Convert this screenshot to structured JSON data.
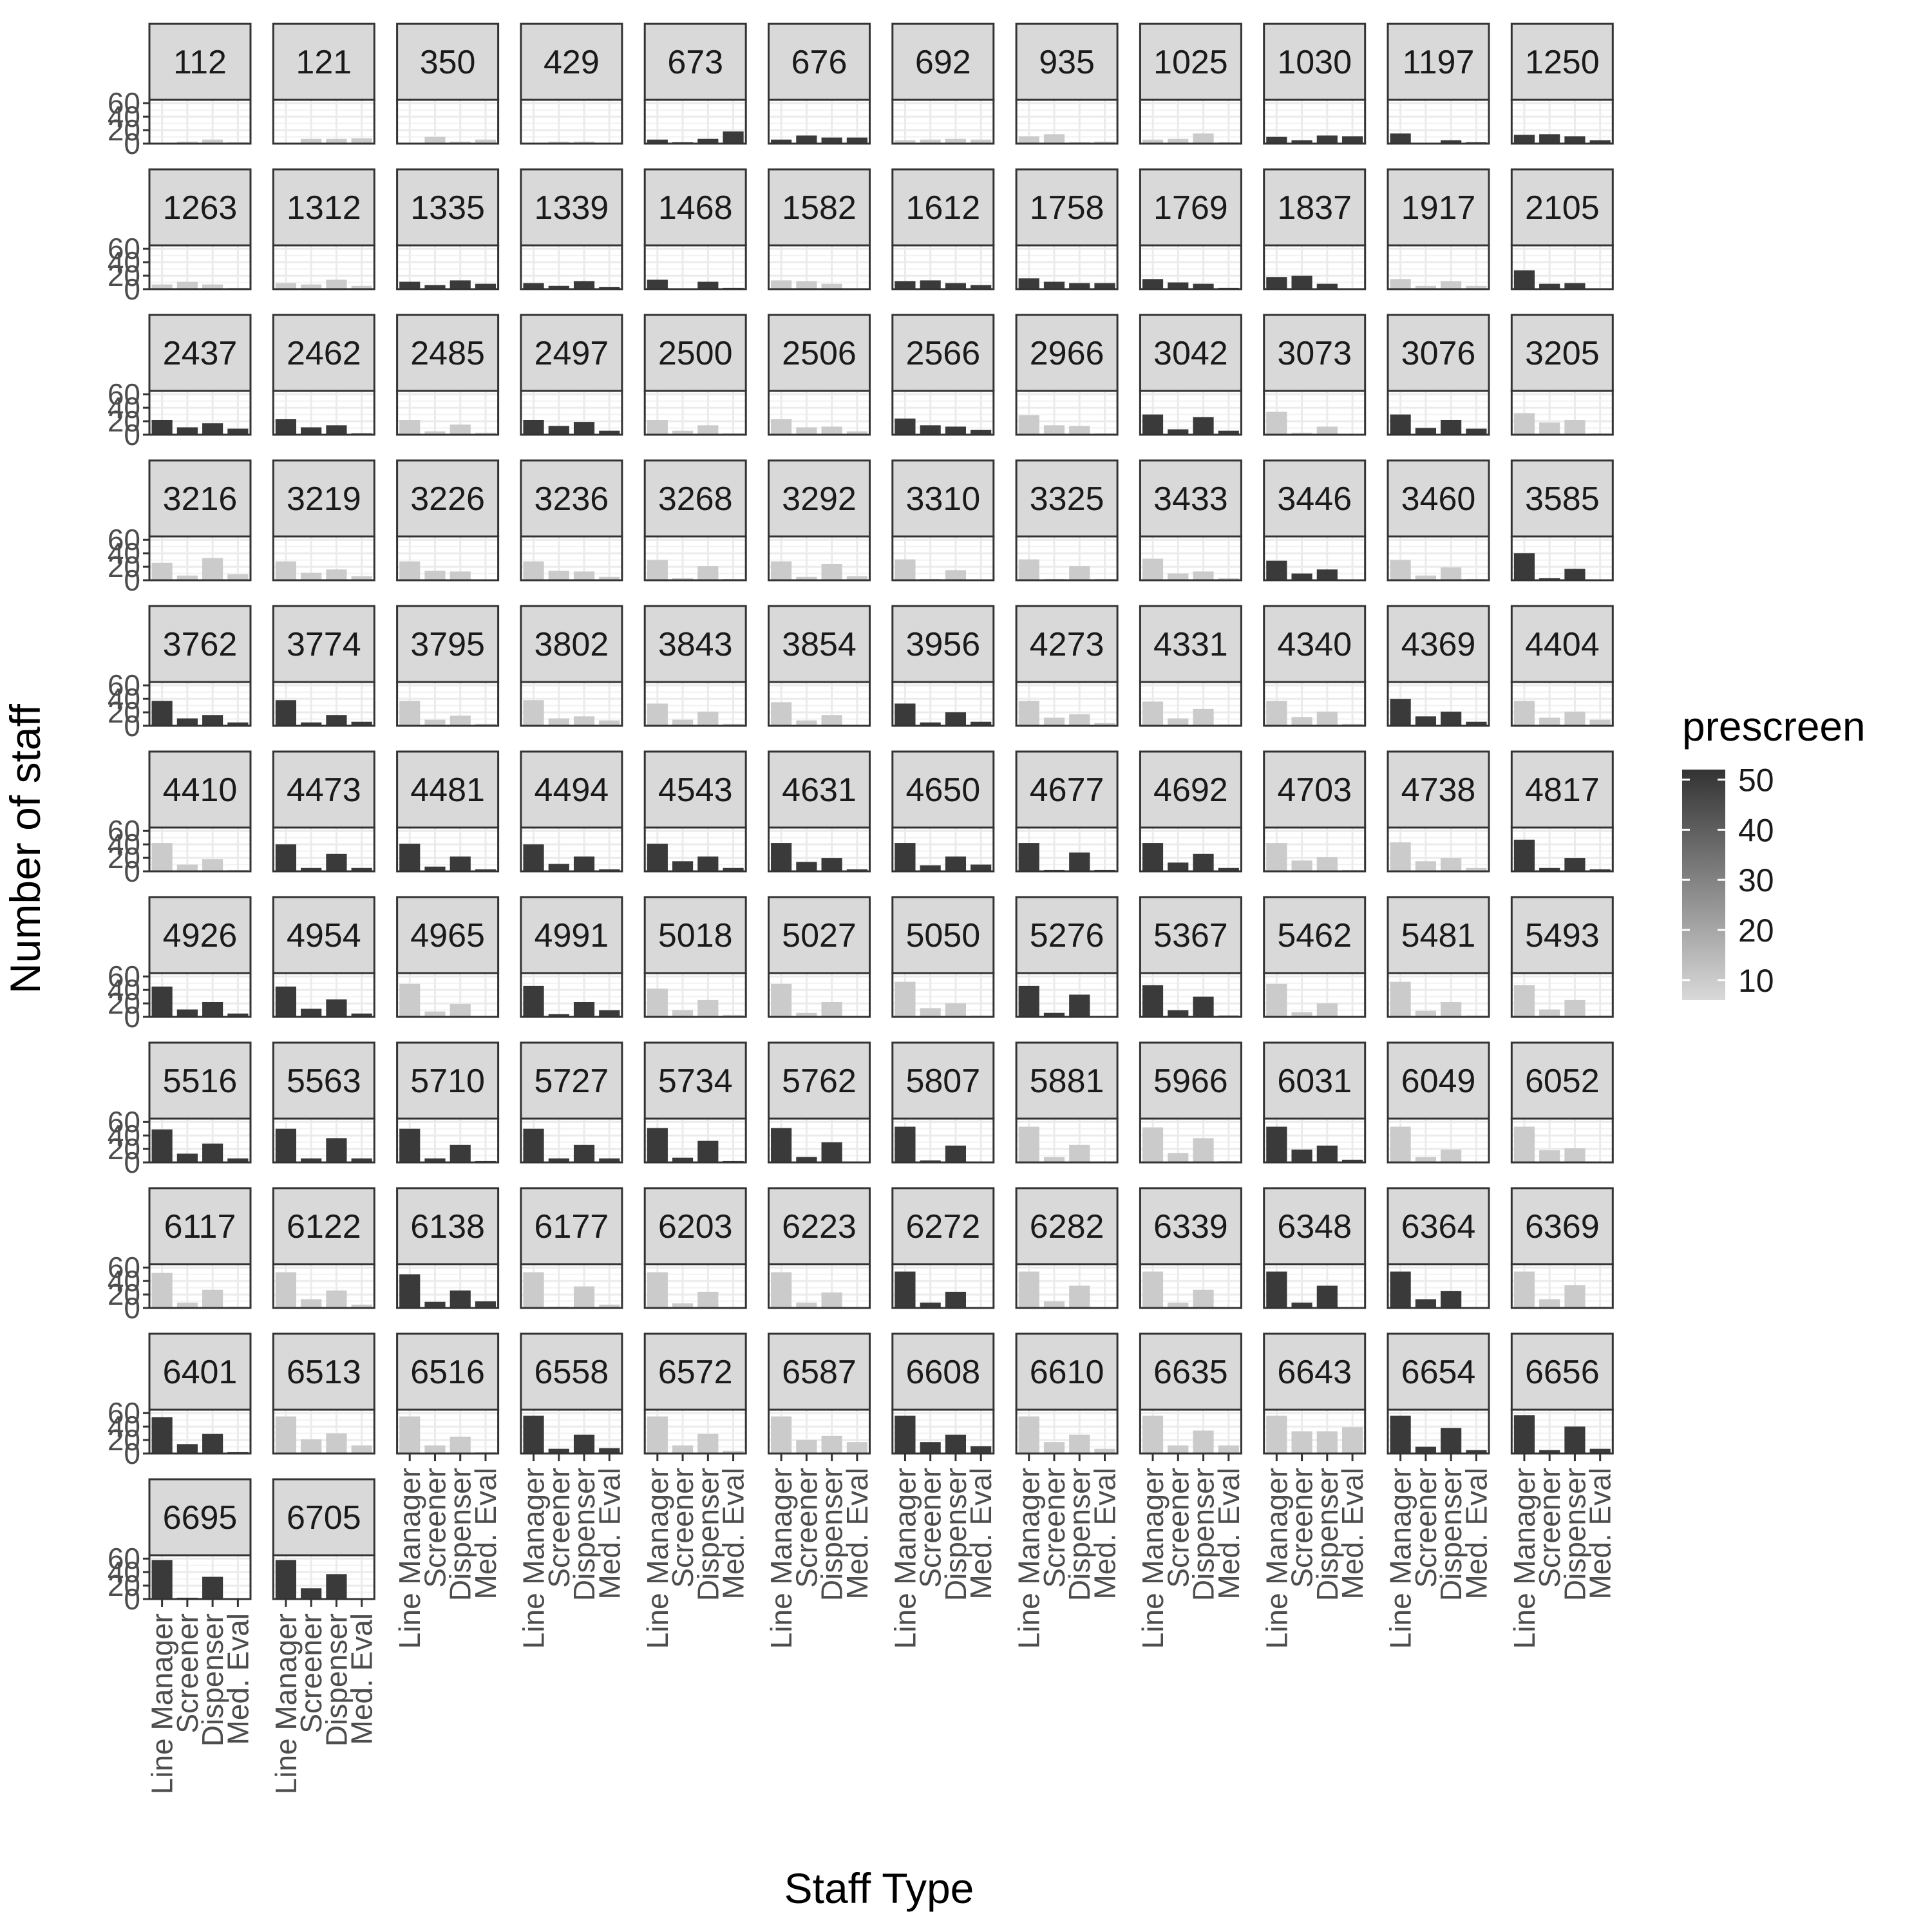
{
  "chart_data": {
    "type": "bar",
    "xlabel": "Staff Type",
    "ylabel": "Number of staff",
    "categories": [
      "Line Manager",
      "Screener",
      "Dispenser",
      "Med. Eval"
    ],
    "y_ticks": [
      0,
      20,
      40,
      60
    ],
    "ylim": [
      0,
      65
    ],
    "facet_columns": 12,
    "legend": {
      "title": "prescreen",
      "position": "right",
      "ticks": [
        10,
        20,
        30,
        40,
        50
      ],
      "range": [
        6,
        52
      ],
      "low_color": "#d9d9d9",
      "high_color": "#333333"
    },
    "panels": [
      {
        "id": "112",
        "prescreen": 10,
        "values": [
          1,
          3,
          6,
          2
        ]
      },
      {
        "id": "121",
        "prescreen": 10,
        "values": [
          1,
          7,
          7,
          8
        ]
      },
      {
        "id": "350",
        "prescreen": 10,
        "values": [
          1,
          10,
          3,
          6
        ]
      },
      {
        "id": "429",
        "prescreen": 10,
        "values": [
          0,
          3,
          3,
          1
        ]
      },
      {
        "id": "673",
        "prescreen": 50,
        "values": [
          6,
          2,
          7,
          18
        ]
      },
      {
        "id": "676",
        "prescreen": 50,
        "values": [
          6,
          12,
          9,
          9
        ]
      },
      {
        "id": "692",
        "prescreen": 10,
        "values": [
          5,
          6,
          7,
          6
        ]
      },
      {
        "id": "935",
        "prescreen": 10,
        "values": [
          11,
          14,
          2,
          3
        ]
      },
      {
        "id": "1025",
        "prescreen": 10,
        "values": [
          6,
          7,
          15,
          2
        ]
      },
      {
        "id": "1030",
        "prescreen": 50,
        "values": [
          10,
          5,
          12,
          11
        ]
      },
      {
        "id": "1197",
        "prescreen": 50,
        "values": [
          15,
          1,
          5,
          2
        ]
      },
      {
        "id": "1250",
        "prescreen": 50,
        "values": [
          13,
          14,
          11,
          5
        ]
      },
      {
        "id": "1263",
        "prescreen": 10,
        "values": [
          7,
          11,
          7,
          2
        ]
      },
      {
        "id": "1312",
        "prescreen": 10,
        "values": [
          9,
          7,
          14,
          5
        ]
      },
      {
        "id": "1335",
        "prescreen": 50,
        "values": [
          11,
          6,
          13,
          8
        ]
      },
      {
        "id": "1339",
        "prescreen": 50,
        "values": [
          9,
          5,
          12,
          3
        ]
      },
      {
        "id": "1468",
        "prescreen": 50,
        "values": [
          14,
          1,
          11,
          2
        ]
      },
      {
        "id": "1582",
        "prescreen": 10,
        "values": [
          13,
          12,
          8,
          1
        ]
      },
      {
        "id": "1612",
        "prescreen": 50,
        "values": [
          12,
          13,
          9,
          6
        ]
      },
      {
        "id": "1758",
        "prescreen": 50,
        "values": [
          16,
          11,
          9,
          9
        ]
      },
      {
        "id": "1769",
        "prescreen": 50,
        "values": [
          15,
          10,
          8,
          2
        ]
      },
      {
        "id": "1837",
        "prescreen": 50,
        "values": [
          18,
          20,
          8,
          1
        ]
      },
      {
        "id": "1917",
        "prescreen": 10,
        "values": [
          15,
          5,
          12,
          5
        ]
      },
      {
        "id": "2105",
        "prescreen": 50,
        "values": [
          28,
          8,
          9,
          1
        ]
      },
      {
        "id": "2437",
        "prescreen": 50,
        "values": [
          22,
          11,
          17,
          9
        ]
      },
      {
        "id": "2462",
        "prescreen": 50,
        "values": [
          23,
          11,
          14,
          2
        ]
      },
      {
        "id": "2485",
        "prescreen": 10,
        "values": [
          22,
          5,
          15,
          3
        ]
      },
      {
        "id": "2497",
        "prescreen": 50,
        "values": [
          22,
          13,
          19,
          6
        ]
      },
      {
        "id": "2500",
        "prescreen": 10,
        "values": [
          22,
          6,
          14,
          2
        ]
      },
      {
        "id": "2506",
        "prescreen": 10,
        "values": [
          23,
          11,
          12,
          5
        ]
      },
      {
        "id": "2566",
        "prescreen": 50,
        "values": [
          24,
          14,
          12,
          7
        ]
      },
      {
        "id": "2966",
        "prescreen": 10,
        "values": [
          29,
          14,
          13,
          2
        ]
      },
      {
        "id": "3042",
        "prescreen": 50,
        "values": [
          30,
          8,
          26,
          6
        ]
      },
      {
        "id": "3073",
        "prescreen": 10,
        "values": [
          34,
          3,
          12,
          1
        ]
      },
      {
        "id": "3076",
        "prescreen": 50,
        "values": [
          30,
          10,
          22,
          9
        ]
      },
      {
        "id": "3205",
        "prescreen": 10,
        "values": [
          32,
          18,
          22,
          2
        ]
      },
      {
        "id": "3216",
        "prescreen": 10,
        "values": [
          26,
          7,
          33,
          9
        ]
      },
      {
        "id": "3219",
        "prescreen": 10,
        "values": [
          28,
          11,
          16,
          6
        ]
      },
      {
        "id": "3226",
        "prescreen": 10,
        "values": [
          28,
          14,
          13,
          1
        ]
      },
      {
        "id": "3236",
        "prescreen": 10,
        "values": [
          28,
          14,
          13,
          5
        ]
      },
      {
        "id": "3268",
        "prescreen": 10,
        "values": [
          30,
          3,
          21,
          2
        ]
      },
      {
        "id": "3292",
        "prescreen": 10,
        "values": [
          28,
          5,
          24,
          6
        ]
      },
      {
        "id": "3310",
        "prescreen": 10,
        "values": [
          31,
          2,
          15,
          0
        ]
      },
      {
        "id": "3325",
        "prescreen": 10,
        "values": [
          31,
          2,
          21,
          2
        ]
      },
      {
        "id": "3433",
        "prescreen": 10,
        "values": [
          32,
          10,
          13,
          3
        ]
      },
      {
        "id": "3446",
        "prescreen": 50,
        "values": [
          29,
          10,
          16,
          1
        ]
      },
      {
        "id": "3460",
        "prescreen": 10,
        "values": [
          30,
          7,
          19,
          2
        ]
      },
      {
        "id": "3585",
        "prescreen": 50,
        "values": [
          40,
          3,
          17,
          1
        ]
      },
      {
        "id": "3762",
        "prescreen": 50,
        "values": [
          37,
          11,
          16,
          5
        ]
      },
      {
        "id": "3774",
        "prescreen": 50,
        "values": [
          38,
          5,
          16,
          6
        ]
      },
      {
        "id": "3795",
        "prescreen": 10,
        "values": [
          37,
          9,
          15,
          3
        ]
      },
      {
        "id": "3802",
        "prescreen": 10,
        "values": [
          38,
          11,
          14,
          8
        ]
      },
      {
        "id": "3843",
        "prescreen": 10,
        "values": [
          33,
          9,
          21,
          3
        ]
      },
      {
        "id": "3854",
        "prescreen": 10,
        "values": [
          35,
          8,
          16,
          1
        ]
      },
      {
        "id": "3956",
        "prescreen": 50,
        "values": [
          33,
          5,
          20,
          6
        ]
      },
      {
        "id": "4273",
        "prescreen": 10,
        "values": [
          37,
          12,
          17,
          4
        ]
      },
      {
        "id": "4331",
        "prescreen": 10,
        "values": [
          36,
          11,
          25,
          2
        ]
      },
      {
        "id": "4340",
        "prescreen": 10,
        "values": [
          37,
          13,
          21,
          3
        ]
      },
      {
        "id": "4369",
        "prescreen": 50,
        "values": [
          40,
          14,
          21,
          6
        ]
      },
      {
        "id": "4404",
        "prescreen": 10,
        "values": [
          37,
          12,
          21,
          9
        ]
      },
      {
        "id": "4410",
        "prescreen": 10,
        "values": [
          42,
          10,
          18,
          2
        ]
      },
      {
        "id": "4473",
        "prescreen": 50,
        "values": [
          40,
          5,
          26,
          5
        ]
      },
      {
        "id": "4481",
        "prescreen": 50,
        "values": [
          41,
          7,
          22,
          3
        ]
      },
      {
        "id": "4494",
        "prescreen": 50,
        "values": [
          40,
          11,
          22,
          3
        ]
      },
      {
        "id": "4543",
        "prescreen": 50,
        "values": [
          41,
          15,
          22,
          5
        ]
      },
      {
        "id": "4631",
        "prescreen": 50,
        "values": [
          42,
          14,
          20,
          3
        ]
      },
      {
        "id": "4650",
        "prescreen": 50,
        "values": [
          42,
          9,
          22,
          10
        ]
      },
      {
        "id": "4677",
        "prescreen": 50,
        "values": [
          42,
          2,
          28,
          2
        ]
      },
      {
        "id": "4692",
        "prescreen": 50,
        "values": [
          42,
          13,
          26,
          5
        ]
      },
      {
        "id": "4703",
        "prescreen": 10,
        "values": [
          42,
          16,
          21,
          2
        ]
      },
      {
        "id": "4738",
        "prescreen": 10,
        "values": [
          43,
          15,
          20,
          5
        ]
      },
      {
        "id": "4817",
        "prescreen": 50,
        "values": [
          47,
          5,
          20,
          3
        ]
      },
      {
        "id": "4926",
        "prescreen": 50,
        "values": [
          45,
          11,
          22,
          5
        ]
      },
      {
        "id": "4954",
        "prescreen": 50,
        "values": [
          45,
          12,
          26,
          5
        ]
      },
      {
        "id": "4965",
        "prescreen": 10,
        "values": [
          49,
          8,
          19,
          1
        ]
      },
      {
        "id": "4991",
        "prescreen": 50,
        "values": [
          46,
          4,
          22,
          10
        ]
      },
      {
        "id": "5018",
        "prescreen": 10,
        "values": [
          42,
          10,
          25,
          3
        ]
      },
      {
        "id": "5027",
        "prescreen": 10,
        "values": [
          49,
          6,
          22,
          1
        ]
      },
      {
        "id": "5050",
        "prescreen": 10,
        "values": [
          52,
          13,
          20,
          2
        ]
      },
      {
        "id": "5276",
        "prescreen": 50,
        "values": [
          46,
          6,
          33,
          1
        ]
      },
      {
        "id": "5367",
        "prescreen": 50,
        "values": [
          47,
          10,
          30,
          2
        ]
      },
      {
        "id": "5462",
        "prescreen": 10,
        "values": [
          49,
          7,
          20,
          1
        ]
      },
      {
        "id": "5481",
        "prescreen": 10,
        "values": [
          52,
          9,
          22,
          2
        ]
      },
      {
        "id": "5493",
        "prescreen": 10,
        "values": [
          47,
          11,
          25,
          2
        ]
      },
      {
        "id": "5516",
        "prescreen": 50,
        "values": [
          49,
          13,
          28,
          6
        ]
      },
      {
        "id": "5563",
        "prescreen": 50,
        "values": [
          50,
          6,
          36,
          6
        ]
      },
      {
        "id": "5710",
        "prescreen": 50,
        "values": [
          50,
          6,
          26,
          2
        ]
      },
      {
        "id": "5727",
        "prescreen": 50,
        "values": [
          50,
          6,
          26,
          6
        ]
      },
      {
        "id": "5734",
        "prescreen": 50,
        "values": [
          51,
          7,
          32,
          2
        ]
      },
      {
        "id": "5762",
        "prescreen": 50,
        "values": [
          51,
          8,
          30,
          1
        ]
      },
      {
        "id": "5807",
        "prescreen": 50,
        "values": [
          53,
          3,
          25,
          0
        ]
      },
      {
        "id": "5881",
        "prescreen": 10,
        "values": [
          53,
          8,
          26,
          1
        ]
      },
      {
        "id": "5966",
        "prescreen": 10,
        "values": [
          52,
          14,
          36,
          2
        ]
      },
      {
        "id": "6031",
        "prescreen": 50,
        "values": [
          53,
          19,
          25,
          4
        ]
      },
      {
        "id": "6049",
        "prescreen": 10,
        "values": [
          53,
          8,
          19,
          1
        ]
      },
      {
        "id": "6052",
        "prescreen": 10,
        "values": [
          53,
          18,
          21,
          1
        ]
      },
      {
        "id": "6117",
        "prescreen": 10,
        "values": [
          52,
          8,
          27,
          2
        ]
      },
      {
        "id": "6122",
        "prescreen": 10,
        "values": [
          53,
          13,
          26,
          5
        ]
      },
      {
        "id": "6138",
        "prescreen": 50,
        "values": [
          50,
          9,
          26,
          10
        ]
      },
      {
        "id": "6177",
        "prescreen": 10,
        "values": [
          53,
          2,
          32,
          5
        ]
      },
      {
        "id": "6203",
        "prescreen": 10,
        "values": [
          53,
          7,
          24,
          1
        ]
      },
      {
        "id": "6223",
        "prescreen": 10,
        "values": [
          53,
          8,
          23,
          0
        ]
      },
      {
        "id": "6272",
        "prescreen": 50,
        "values": [
          54,
          8,
          24,
          1
        ]
      },
      {
        "id": "6282",
        "prescreen": 10,
        "values": [
          54,
          10,
          33,
          0
        ]
      },
      {
        "id": "6339",
        "prescreen": 10,
        "values": [
          54,
          8,
          27,
          1
        ]
      },
      {
        "id": "6348",
        "prescreen": 50,
        "values": [
          54,
          8,
          33,
          1
        ]
      },
      {
        "id": "6364",
        "prescreen": 50,
        "values": [
          54,
          13,
          25,
          1
        ]
      },
      {
        "id": "6369",
        "prescreen": 10,
        "values": [
          54,
          13,
          34,
          2
        ]
      },
      {
        "id": "6401",
        "prescreen": 50,
        "values": [
          54,
          14,
          29,
          2
        ]
      },
      {
        "id": "6513",
        "prescreen": 10,
        "values": [
          55,
          21,
          30,
          12
        ]
      },
      {
        "id": "6516",
        "prescreen": 10,
        "values": [
          55,
          12,
          25,
          2
        ]
      },
      {
        "id": "6558",
        "prescreen": 50,
        "values": [
          56,
          7,
          28,
          8
        ]
      },
      {
        "id": "6572",
        "prescreen": 10,
        "values": [
          55,
          12,
          29,
          4
        ]
      },
      {
        "id": "6587",
        "prescreen": 10,
        "values": [
          55,
          20,
          26,
          17
        ]
      },
      {
        "id": "6608",
        "prescreen": 50,
        "values": [
          56,
          17,
          28,
          11
        ]
      },
      {
        "id": "6610",
        "prescreen": 10,
        "values": [
          55,
          17,
          28,
          7
        ]
      },
      {
        "id": "6635",
        "prescreen": 10,
        "values": [
          56,
          12,
          34,
          12
        ]
      },
      {
        "id": "6643",
        "prescreen": 10,
        "values": [
          56,
          33,
          33,
          39
        ]
      },
      {
        "id": "6654",
        "prescreen": 50,
        "values": [
          56,
          10,
          38,
          5
        ]
      },
      {
        "id": "6656",
        "prescreen": 50,
        "values": [
          57,
          5,
          40,
          7
        ]
      },
      {
        "id": "6695",
        "prescreen": 50,
        "values": [
          58,
          2,
          33,
          0
        ]
      },
      {
        "id": "6705",
        "prescreen": 50,
        "values": [
          58,
          16,
          37,
          0
        ]
      }
    ]
  }
}
